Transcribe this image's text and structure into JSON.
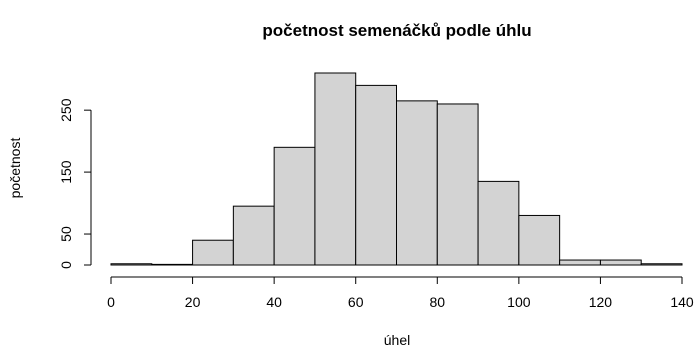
{
  "chart_data": {
    "type": "histogram",
    "title": "početnost semenáčků podle úhlu",
    "xlabel": "úhel",
    "ylabel": "početnost",
    "xlim": [
      0,
      140
    ],
    "ylim": [
      0,
      310
    ],
    "x_ticks": [
      0,
      20,
      40,
      60,
      80,
      100,
      120,
      140
    ],
    "y_ticks": [
      0,
      50,
      150,
      250
    ],
    "bin_edges": [
      0,
      10,
      20,
      30,
      40,
      50,
      60,
      70,
      80,
      90,
      100,
      110,
      120,
      130,
      140
    ],
    "counts": [
      2,
      1,
      40,
      95,
      190,
      310,
      290,
      265,
      260,
      135,
      80,
      8,
      8,
      2
    ],
    "bar_color": "#d3d3d3",
    "edge_color": "#000000",
    "grid": false
  }
}
